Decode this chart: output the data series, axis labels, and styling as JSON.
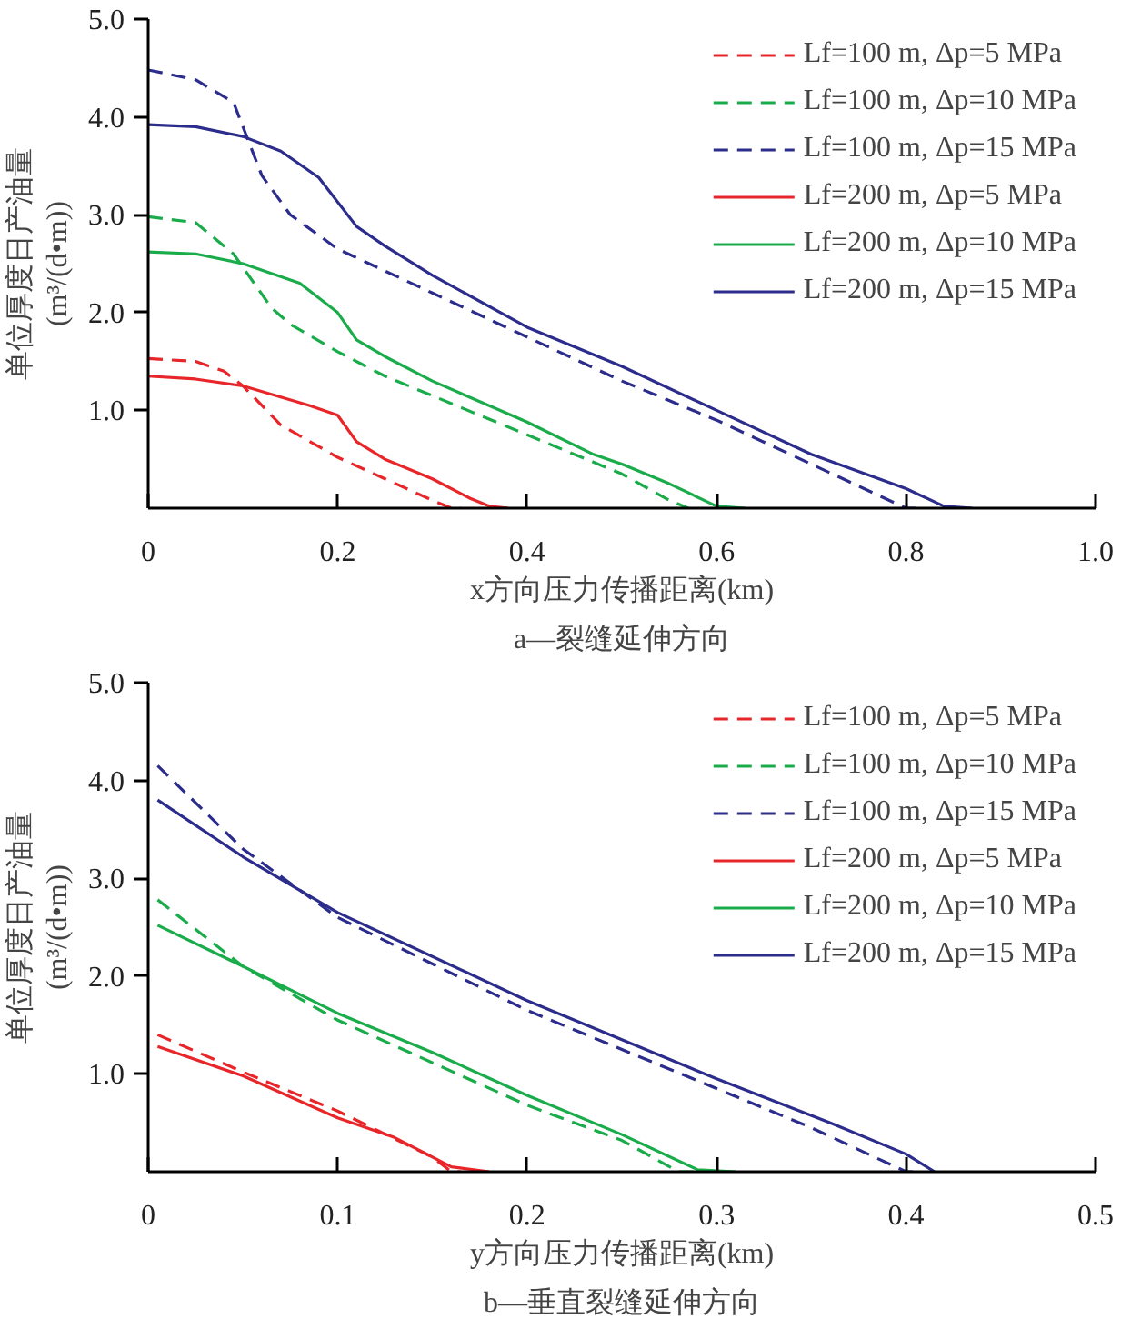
{
  "chart_data": [
    {
      "type": "line",
      "title": "a—裂缝延伸方向",
      "xlabel": "x方向压力传播距离(km)",
      "ylabel": "单位厚度日产油量\n(m³/(d•m))",
      "xlim": [
        0,
        1.0
      ],
      "ylim": [
        0,
        5.0
      ],
      "xticks": [
        0,
        0.2,
        0.4,
        0.6,
        0.8,
        {
          "value": 1.0,
          "label": "1.0"
        }
      ],
      "yticks": [
        {
          "value": 1.0,
          "label": "1.0"
        },
        {
          "value": 2.0,
          "label": "2.0"
        },
        {
          "value": 3.0,
          "label": "3.0"
        },
        {
          "value": 4.0,
          "label": "4.0"
        },
        {
          "value": 5.0,
          "label": "5.0"
        }
      ],
      "grid": false,
      "legend": "top right",
      "marker": "none",
      "series": [
        {
          "name": "Lf=100 m, Δp=5 MPa",
          "color": "#e8262a",
          "line_style": "dashed",
          "x": [
            0,
            0.05,
            0.08,
            0.1,
            0.14,
            0.2,
            0.25,
            0.3,
            0.32,
            0.33
          ],
          "values": [
            1.53,
            1.5,
            1.4,
            1.25,
            0.85,
            0.52,
            0.3,
            0.08,
            0,
            0
          ]
        },
        {
          "name": "Lf=100 m, Δp=10 MPa",
          "color": "#1aac4a",
          "line_style": "dashed",
          "x": [
            0,
            0.05,
            0.09,
            0.13,
            0.15,
            0.2,
            0.25,
            0.3,
            0.4,
            0.5,
            0.55,
            0.57
          ],
          "values": [
            2.98,
            2.92,
            2.6,
            2.05,
            1.88,
            1.6,
            1.35,
            1.15,
            0.75,
            0.35,
            0.08,
            0
          ]
        },
        {
          "name": "Lf=100 m, Δp=15 MPa",
          "color": "#2b2c8c",
          "line_style": "dashed",
          "x": [
            0,
            0.05,
            0.09,
            0.12,
            0.15,
            0.2,
            0.3,
            0.4,
            0.5,
            0.6,
            0.7,
            0.8,
            0.82
          ],
          "values": [
            4.48,
            4.38,
            4.15,
            3.4,
            3.0,
            2.65,
            2.2,
            1.75,
            1.3,
            0.9,
            0.45,
            0,
            0
          ]
        },
        {
          "name": "Lf=200 m, Δp=5 MPa",
          "color": "#e8262a",
          "line_style": "solid",
          "x": [
            0,
            0.05,
            0.1,
            0.17,
            0.2,
            0.22,
            0.25,
            0.3,
            0.34,
            0.36,
            0.38
          ],
          "values": [
            1.35,
            1.32,
            1.25,
            1.05,
            0.95,
            0.68,
            0.5,
            0.3,
            0.1,
            0.02,
            0
          ]
        },
        {
          "name": "Lf=200 m, Δp=10 MPa",
          "color": "#1aac4a",
          "line_style": "solid",
          "x": [
            0,
            0.05,
            0.1,
            0.16,
            0.2,
            0.22,
            0.25,
            0.3,
            0.4,
            0.47,
            0.5,
            0.55,
            0.6,
            0.63
          ],
          "values": [
            2.62,
            2.6,
            2.5,
            2.3,
            2.0,
            1.72,
            1.55,
            1.3,
            0.88,
            0.55,
            0.45,
            0.25,
            0.02,
            0
          ]
        },
        {
          "name": "Lf=200 m, Δp=15 MPa",
          "color": "#2b2c8c",
          "line_style": "solid",
          "x": [
            0,
            0.05,
            0.1,
            0.14,
            0.18,
            0.22,
            0.25,
            0.3,
            0.4,
            0.5,
            0.6,
            0.7,
            0.8,
            0.84,
            0.87
          ],
          "values": [
            3.92,
            3.9,
            3.8,
            3.65,
            3.38,
            2.88,
            2.68,
            2.38,
            1.85,
            1.45,
            1.0,
            0.55,
            0.2,
            0.02,
            0
          ]
        }
      ]
    },
    {
      "type": "line",
      "title": "b—垂直裂缝延伸方向",
      "xlabel": "y方向压力传播距离(km)",
      "ylabel": "单位厚度日产油量\n(m³/(d•m))",
      "xlim": [
        0,
        0.5
      ],
      "ylim": [
        0,
        5.0
      ],
      "xticks": [
        0,
        0.1,
        0.2,
        0.3,
        0.4,
        0.5
      ],
      "yticks": [
        {
          "value": 1.0,
          "label": "1.0"
        },
        {
          "value": 2.0,
          "label": "2.0"
        },
        {
          "value": 3.0,
          "label": "3.0"
        },
        {
          "value": 4.0,
          "label": "4.0"
        },
        {
          "value": 5.0,
          "label": "5.0"
        }
      ],
      "grid": false,
      "legend": "top right",
      "marker": "none",
      "series": [
        {
          "name": "Lf=100 m, Δp=5 MPa",
          "color": "#e8262a",
          "line_style": "dashed",
          "x": [
            0.005,
            0.05,
            0.1,
            0.15,
            0.16,
            0.165
          ],
          "values": [
            1.4,
            1.02,
            0.62,
            0.15,
            0,
            0
          ]
        },
        {
          "name": "Lf=100 m, Δp=10 MPa",
          "color": "#1aac4a",
          "line_style": "dashed",
          "x": [
            0.005,
            0.05,
            0.1,
            0.2,
            0.25,
            0.28,
            0.29
          ],
          "values": [
            2.78,
            2.1,
            1.55,
            0.68,
            0.32,
            0,
            0
          ]
        },
        {
          "name": "Lf=100 m, Δp=15 MPa",
          "color": "#2b2c8c",
          "line_style": "dashed",
          "x": [
            0.005,
            0.05,
            0.1,
            0.2,
            0.3,
            0.35,
            0.4,
            0.405
          ],
          "values": [
            4.15,
            3.3,
            2.6,
            1.65,
            0.85,
            0.45,
            0,
            0
          ]
        },
        {
          "name": "Lf=200 m, Δp=5 MPa",
          "color": "#e8262a",
          "line_style": "solid",
          "x": [
            0.005,
            0.05,
            0.1,
            0.13,
            0.16,
            0.18
          ],
          "values": [
            1.28,
            0.98,
            0.55,
            0.35,
            0.05,
            0
          ]
        },
        {
          "name": "Lf=200 m, Δp=10 MPa",
          "color": "#1aac4a",
          "line_style": "solid",
          "x": [
            0.005,
            0.05,
            0.1,
            0.15,
            0.2,
            0.25,
            0.29,
            0.31
          ],
          "values": [
            2.52,
            2.1,
            1.62,
            1.22,
            0.78,
            0.38,
            0.02,
            0
          ]
        },
        {
          "name": "Lf=200 m, Δp=15 MPa",
          "color": "#2b2c8c",
          "line_style": "solid",
          "x": [
            0.005,
            0.05,
            0.1,
            0.2,
            0.3,
            0.36,
            0.4,
            0.415
          ],
          "values": [
            3.8,
            3.22,
            2.65,
            1.75,
            0.95,
            0.5,
            0.18,
            0
          ]
        }
      ]
    }
  ]
}
